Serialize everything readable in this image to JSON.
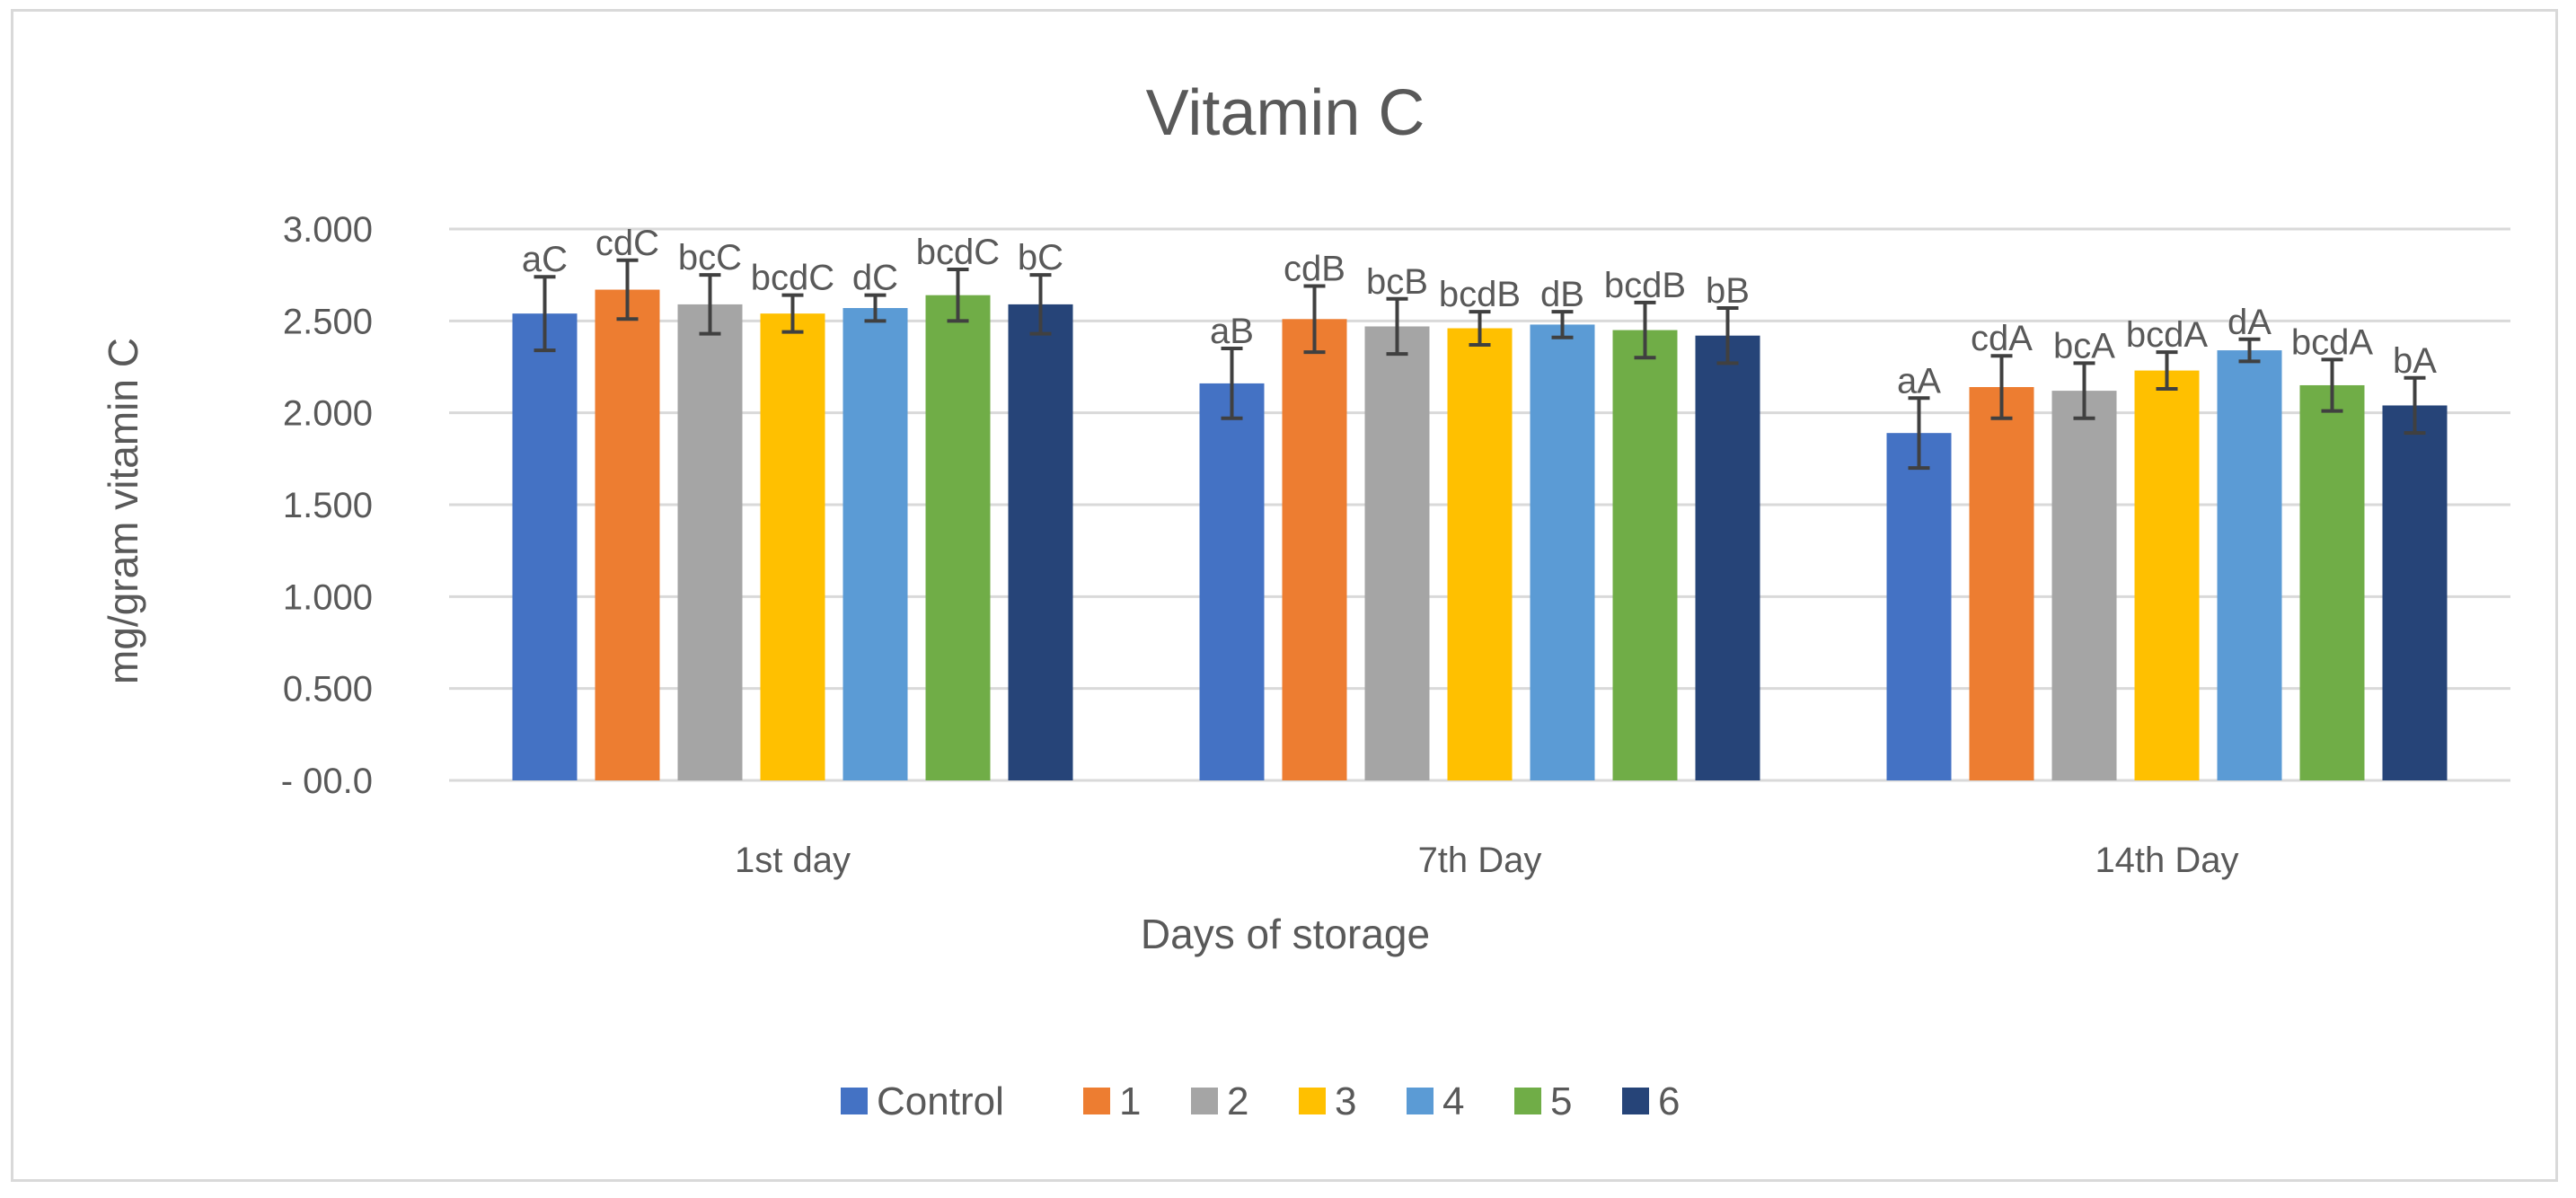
{
  "chart_data": {
    "type": "bar",
    "title": "Vitamin C",
    "xlabel": "Days of storage",
    "ylabel": "mg/gram vitamin C",
    "ylim": [
      0,
      3.0
    ],
    "ytick_values": [
      0,
      0.5,
      1.0,
      1.5,
      2.0,
      2.5,
      3.0
    ],
    "ytick_labels": [
      "-   00.0",
      "0.500",
      "1.000",
      "1.500",
      "2.000",
      "2.500",
      "3.000"
    ],
    "grid": true,
    "legend_position": "bottom",
    "categories": [
      "1st day",
      "7th Day",
      "14th Day"
    ],
    "series": [
      {
        "name": "Control",
        "color": "#4472c4",
        "values": [
          2.54,
          2.16,
          1.89
        ],
        "errors": [
          0.2,
          0.19,
          0.19
        ],
        "labels": [
          "aC",
          "aB",
          "aA"
        ]
      },
      {
        "name": "1",
        "color": "#ed7d31",
        "values": [
          2.67,
          2.51,
          2.14
        ],
        "errors": [
          0.16,
          0.18,
          0.17
        ],
        "labels": [
          "cdC",
          "cdB",
          "cdA"
        ]
      },
      {
        "name": "2",
        "color": "#a5a5a5",
        "values": [
          2.59,
          2.47,
          2.12
        ],
        "errors": [
          0.16,
          0.15,
          0.15
        ],
        "labels": [
          "bcC",
          "bcB",
          "bcA"
        ]
      },
      {
        "name": "3",
        "color": "#ffc000",
        "values": [
          2.54,
          2.46,
          2.23
        ],
        "errors": [
          0.1,
          0.09,
          0.1
        ],
        "labels": [
          "bcdC",
          "bcdB",
          "bcdA"
        ]
      },
      {
        "name": "4",
        "color": "#5b9bd5",
        "values": [
          2.57,
          2.48,
          2.34
        ],
        "errors": [
          0.07,
          0.07,
          0.06
        ],
        "labels": [
          "dC",
          "dB",
          "dA"
        ]
      },
      {
        "name": "5",
        "color": "#70ad47",
        "values": [
          2.64,
          2.45,
          2.15
        ],
        "errors": [
          0.14,
          0.15,
          0.14
        ],
        "labels": [
          "bcdC",
          "bcdB",
          "bcdA"
        ]
      },
      {
        "name": "6",
        "color": "#264478",
        "values": [
          2.59,
          2.42,
          2.04
        ],
        "errors": [
          0.16,
          0.15,
          0.15
        ],
        "labels": [
          "bC",
          "bB",
          "bA"
        ]
      }
    ]
  }
}
